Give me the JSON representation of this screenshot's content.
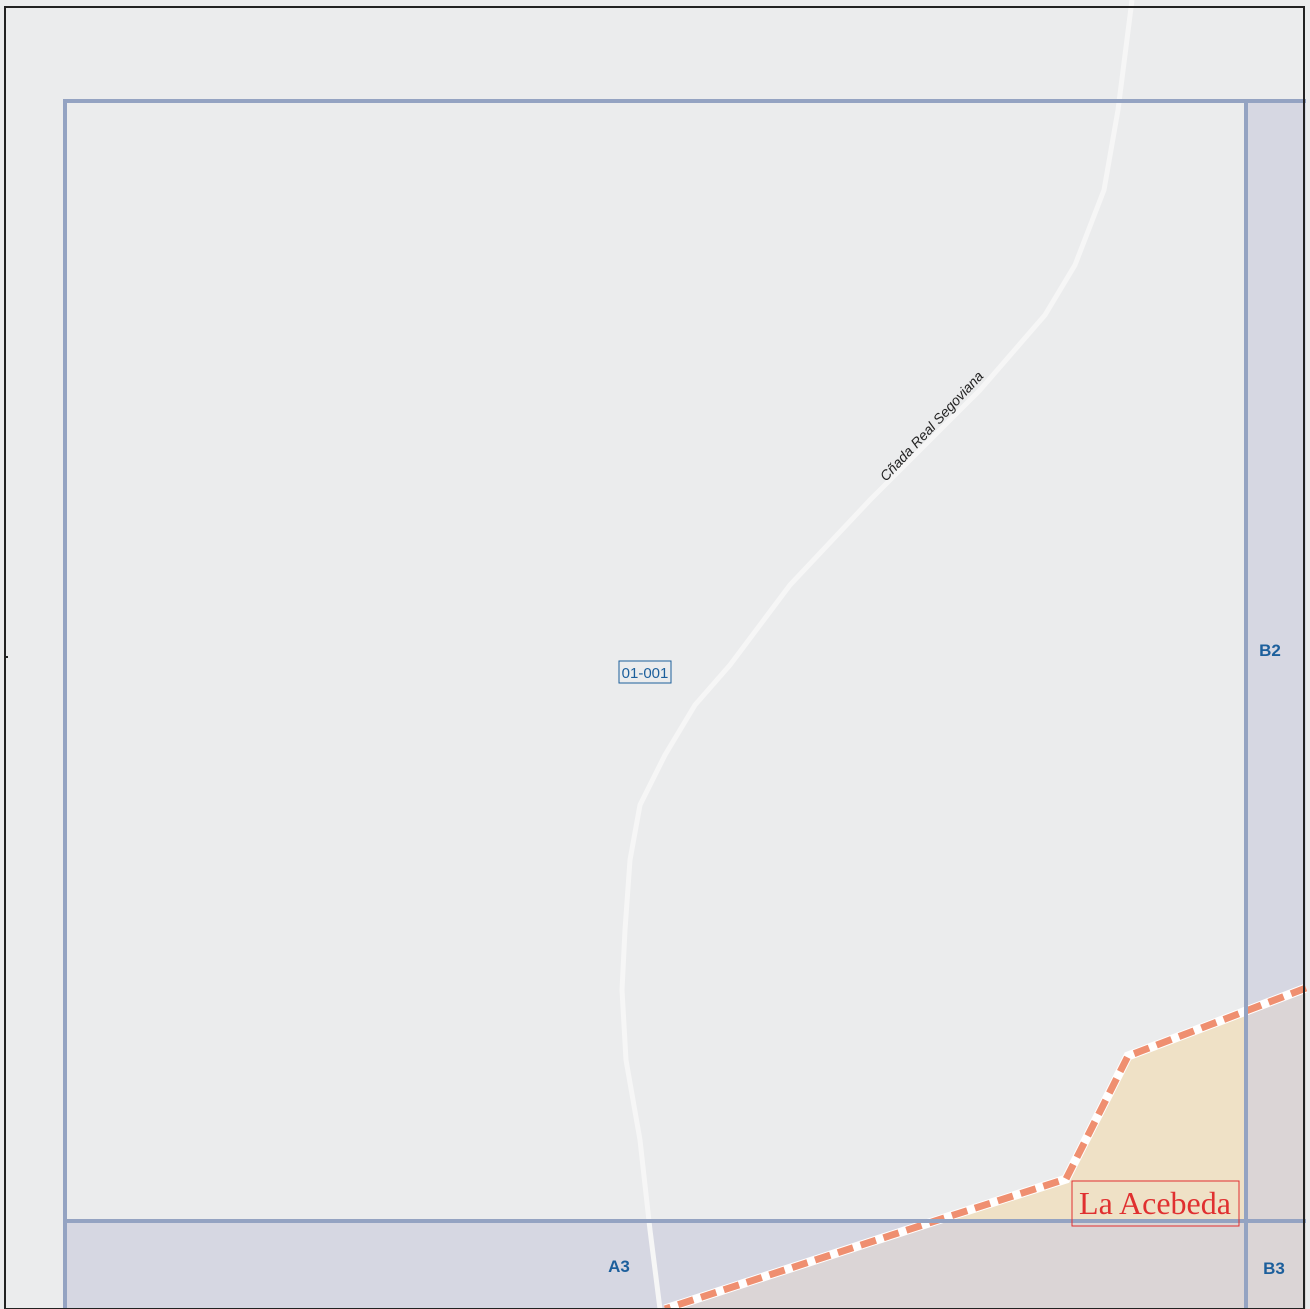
{
  "map": {
    "parcel_id": "01-001",
    "road_name": "Cñada Real Segoviana",
    "place_name": "La Acebeda",
    "grid_labels": {
      "b2": "B2",
      "a3": "A3",
      "b3": "B3"
    }
  },
  "colors": {
    "background": "#ebeced",
    "grid_line": "#94a3c2",
    "adjacent_cell_fill": "#d6d7e2",
    "municipality_fill": "#efe1c6",
    "municipality_overlap_fill": "#dbd5d6",
    "boundary_dash": "#ef8f70",
    "road": "#f6f6f6",
    "label_blue": "#1c5f9c",
    "place_red": "#e03030"
  }
}
